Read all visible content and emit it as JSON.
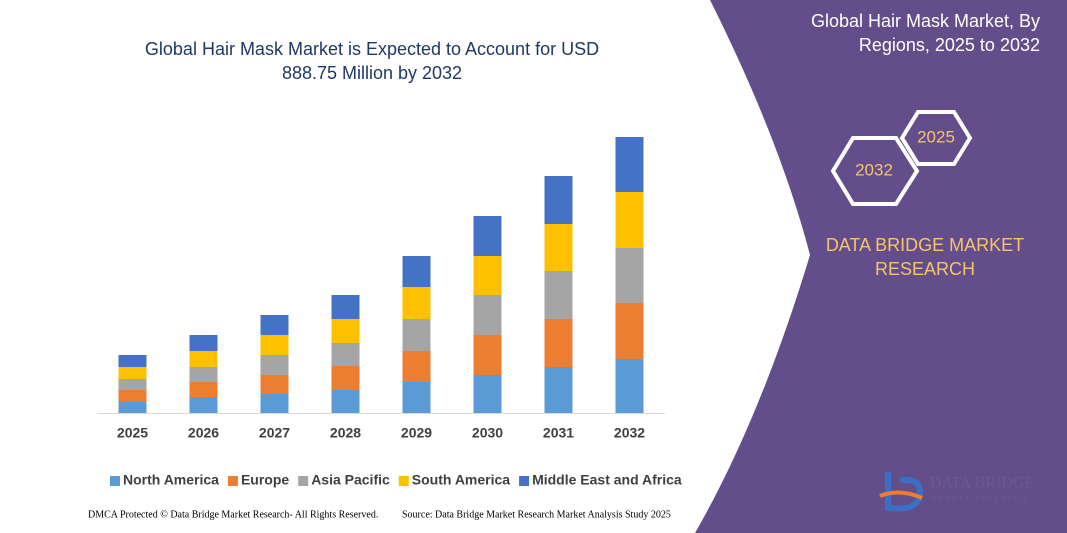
{
  "chart_data": {
    "type": "stacked_bar",
    "title": [
      "Global Hair Mask Market is Expected to Account for USD",
      "888.75 Million by 2032"
    ],
    "categories": [
      "2025",
      "2026",
      "2027",
      "2028",
      "2029",
      "2030",
      "2031",
      "2032"
    ],
    "series": [
      {
        "name": "North America",
        "color": "#5b9bd5",
        "values": [
          11,
          16,
          19,
          23,
          31,
          38,
          46,
          54
        ]
      },
      {
        "name": "Europe",
        "color": "#ed7d31",
        "values": [
          12,
          15,
          19,
          24,
          31,
          40,
          48,
          56
        ]
      },
      {
        "name": "Asia Pacific",
        "color": "#a5a5a5",
        "values": [
          11,
          15,
          20,
          23,
          32,
          40,
          48,
          55
        ]
      },
      {
        "name": "South America",
        "color": "#ffc000",
        "values": [
          12,
          16,
          20,
          24,
          32,
          39,
          47,
          56
        ]
      },
      {
        "name": "Middle East and Africa",
        "color": "#4472c4",
        "values": [
          12,
          16,
          20,
          24,
          31,
          40,
          48,
          55
        ]
      }
    ],
    "legend": "bottom"
  },
  "panel": {
    "title": [
      "Global Hair Mask Market, By",
      "Regions, 2025 to 2032"
    ],
    "hex_start": "2025",
    "hex_end": "2032",
    "brand": [
      "DATA BRIDGE MARKET",
      "RESEARCH"
    ],
    "logo": [
      "DATA BRIDGE",
      "MARKET RESEARCH"
    ]
  },
  "footer": {
    "left": "DMCA Protected © Data Bridge Market Research- All Rights Reserved.",
    "right": "Source: Data Bridge Market Research Market Analysis Study 2025"
  }
}
